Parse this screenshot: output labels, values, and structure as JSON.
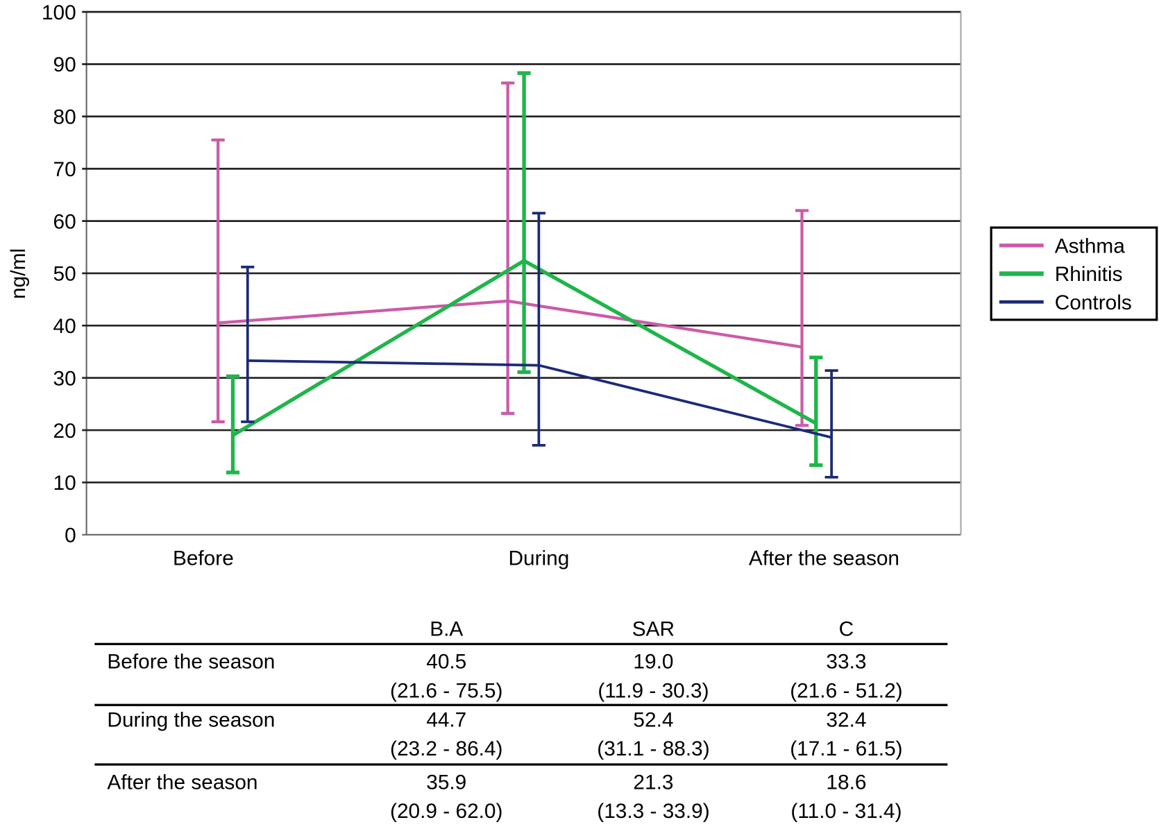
{
  "chart_data": {
    "type": "line",
    "ylabel": "ng/ml",
    "ylim": [
      0,
      100
    ],
    "yticks": [
      0,
      10,
      20,
      30,
      40,
      50,
      60,
      70,
      80,
      90,
      100
    ],
    "categories": [
      "Before",
      "During",
      "After the season"
    ],
    "grid": true,
    "legend_placement": "right",
    "series": [
      {
        "name": "Asthma",
        "color": "#cc5aa8",
        "values": [
          40.5,
          44.7,
          35.9
        ],
        "lower": [
          21.6,
          23.2,
          20.9
        ],
        "upper": [
          75.5,
          86.4,
          62.0
        ]
      },
      {
        "name": "Rhinitis",
        "color": "#1fb54a",
        "values": [
          19.0,
          52.4,
          21.3
        ],
        "lower": [
          11.9,
          31.1,
          13.3
        ],
        "upper": [
          30.3,
          88.3,
          33.9
        ]
      },
      {
        "name": "Controls",
        "color": "#1c2a78",
        "values": [
          33.3,
          32.4,
          18.6
        ],
        "lower": [
          21.6,
          17.1,
          11.0
        ],
        "upper": [
          51.2,
          61.5,
          31.4
        ]
      }
    ]
  },
  "table": {
    "headers": [
      "",
      "B.A",
      "SAR",
      "C"
    ],
    "rows": [
      {
        "label": "Before the season",
        "cells": [
          [
            "40.5",
            "(21.6 - 75.5)"
          ],
          [
            "19.0",
            "(11.9 - 30.3)"
          ],
          [
            "33.3",
            "(21.6 - 51.2)"
          ]
        ]
      },
      {
        "label": "During the season",
        "cells": [
          [
            "44.7",
            "(23.2 - 86.4)"
          ],
          [
            "52.4",
            "(31.1 - 88.3)"
          ],
          [
            "32.4",
            "(17.1 - 61.5)"
          ]
        ]
      },
      {
        "label": "After the season",
        "cells": [
          [
            "35.9",
            "(20.9 - 62.0)"
          ],
          [
            "21.3",
            "(13.3 - 33.9)"
          ],
          [
            "18.6",
            "(11.0 - 31.4)"
          ]
        ]
      }
    ]
  }
}
